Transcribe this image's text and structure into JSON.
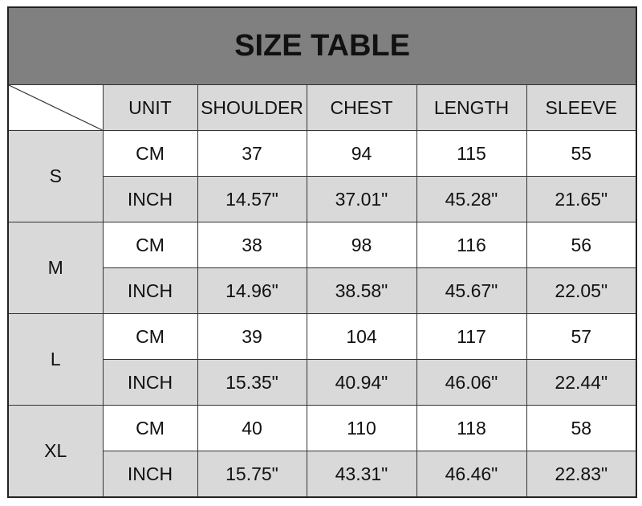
{
  "title": "SIZE TABLE",
  "headers": [
    "UNIT",
    "SHOULDER",
    "CHEST",
    "LENGTH",
    "SLEEVE"
  ],
  "rows": [
    {
      "size": "S",
      "cm": {
        "unit": "CM",
        "values": [
          "37",
          "94",
          "115",
          "55"
        ]
      },
      "inch": {
        "unit": "INCH",
        "values": [
          "14.57\"",
          "37.01\"",
          "45.28\"",
          "21.65\""
        ]
      }
    },
    {
      "size": "M",
      "cm": {
        "unit": "CM",
        "values": [
          "38",
          "98",
          "116",
          "56"
        ]
      },
      "inch": {
        "unit": "INCH",
        "values": [
          "14.96\"",
          "38.58\"",
          "45.67\"",
          "22.05\""
        ]
      }
    },
    {
      "size": "L",
      "cm": {
        "unit": "CM",
        "values": [
          "39",
          "104",
          "117",
          "57"
        ]
      },
      "inch": {
        "unit": "INCH",
        "values": [
          "15.35\"",
          "40.94\"",
          "46.06\"",
          "22.44\""
        ]
      }
    },
    {
      "size": "XL",
      "cm": {
        "unit": "CM",
        "values": [
          "40",
          "110",
          "118",
          "58"
        ]
      },
      "inch": {
        "unit": "INCH",
        "values": [
          "15.75\"",
          "43.31\"",
          "46.46\"",
          "22.83\""
        ]
      }
    }
  ],
  "colors": {
    "title_bg": "#808080",
    "shade": "#d9d9d9"
  }
}
